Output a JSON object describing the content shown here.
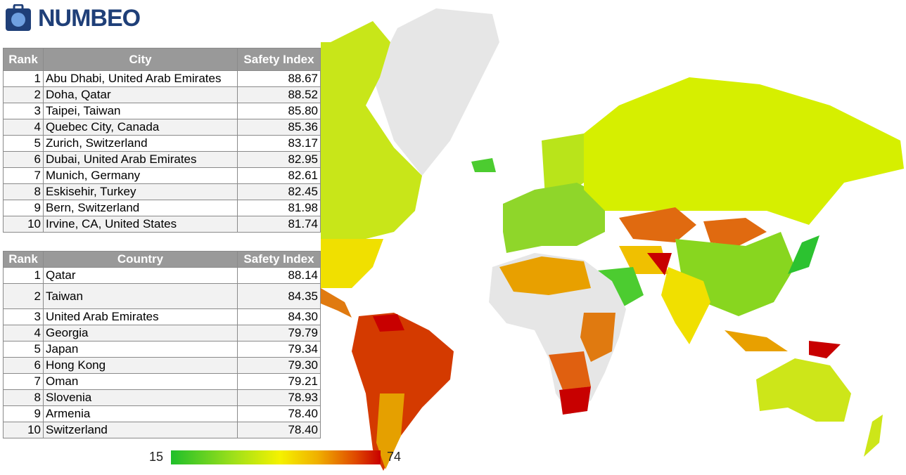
{
  "header": {
    "logo": "NUMBEO"
  },
  "city_table": {
    "columns": [
      "Rank",
      "City",
      "Safety Index"
    ],
    "rows": [
      [
        "1",
        "Abu Dhabi, United Arab Emirates",
        "88.67"
      ],
      [
        "2",
        "Doha, Qatar",
        "88.52"
      ],
      [
        "3",
        "Taipei, Taiwan",
        "85.80"
      ],
      [
        "4",
        "Quebec City, Canada",
        "85.36"
      ],
      [
        "5",
        "Zurich, Switzerland",
        "83.17"
      ],
      [
        "6",
        "Dubai, United Arab Emirates",
        "82.95"
      ],
      [
        "7",
        "Munich, Germany",
        "82.61"
      ],
      [
        "8",
        "Eskisehir, Turkey",
        "82.45"
      ],
      [
        "9",
        "Bern, Switzerland",
        "81.98"
      ],
      [
        "10",
        "Irvine, CA, United States",
        "81.74"
      ]
    ]
  },
  "country_table": {
    "columns": [
      "Rank",
      "Country",
      "Safety Index"
    ],
    "rows": [
      [
        "1",
        "Qatar",
        "88.14"
      ],
      [
        "2",
        "Taiwan",
        "84.35"
      ],
      [
        "3",
        "United Arab Emirates",
        "84.30"
      ],
      [
        "4",
        "Georgia",
        "79.79"
      ],
      [
        "5",
        "Japan",
        "79.34"
      ],
      [
        "6",
        "Hong Kong",
        "79.30"
      ],
      [
        "7",
        "Oman",
        "79.21"
      ],
      [
        "8",
        "Slovenia",
        "78.93"
      ],
      [
        "9",
        "Armenia",
        "78.40"
      ],
      [
        "10",
        "Switzerland",
        "78.40"
      ]
    ]
  },
  "legend": {
    "min": "15",
    "max": "74"
  }
}
